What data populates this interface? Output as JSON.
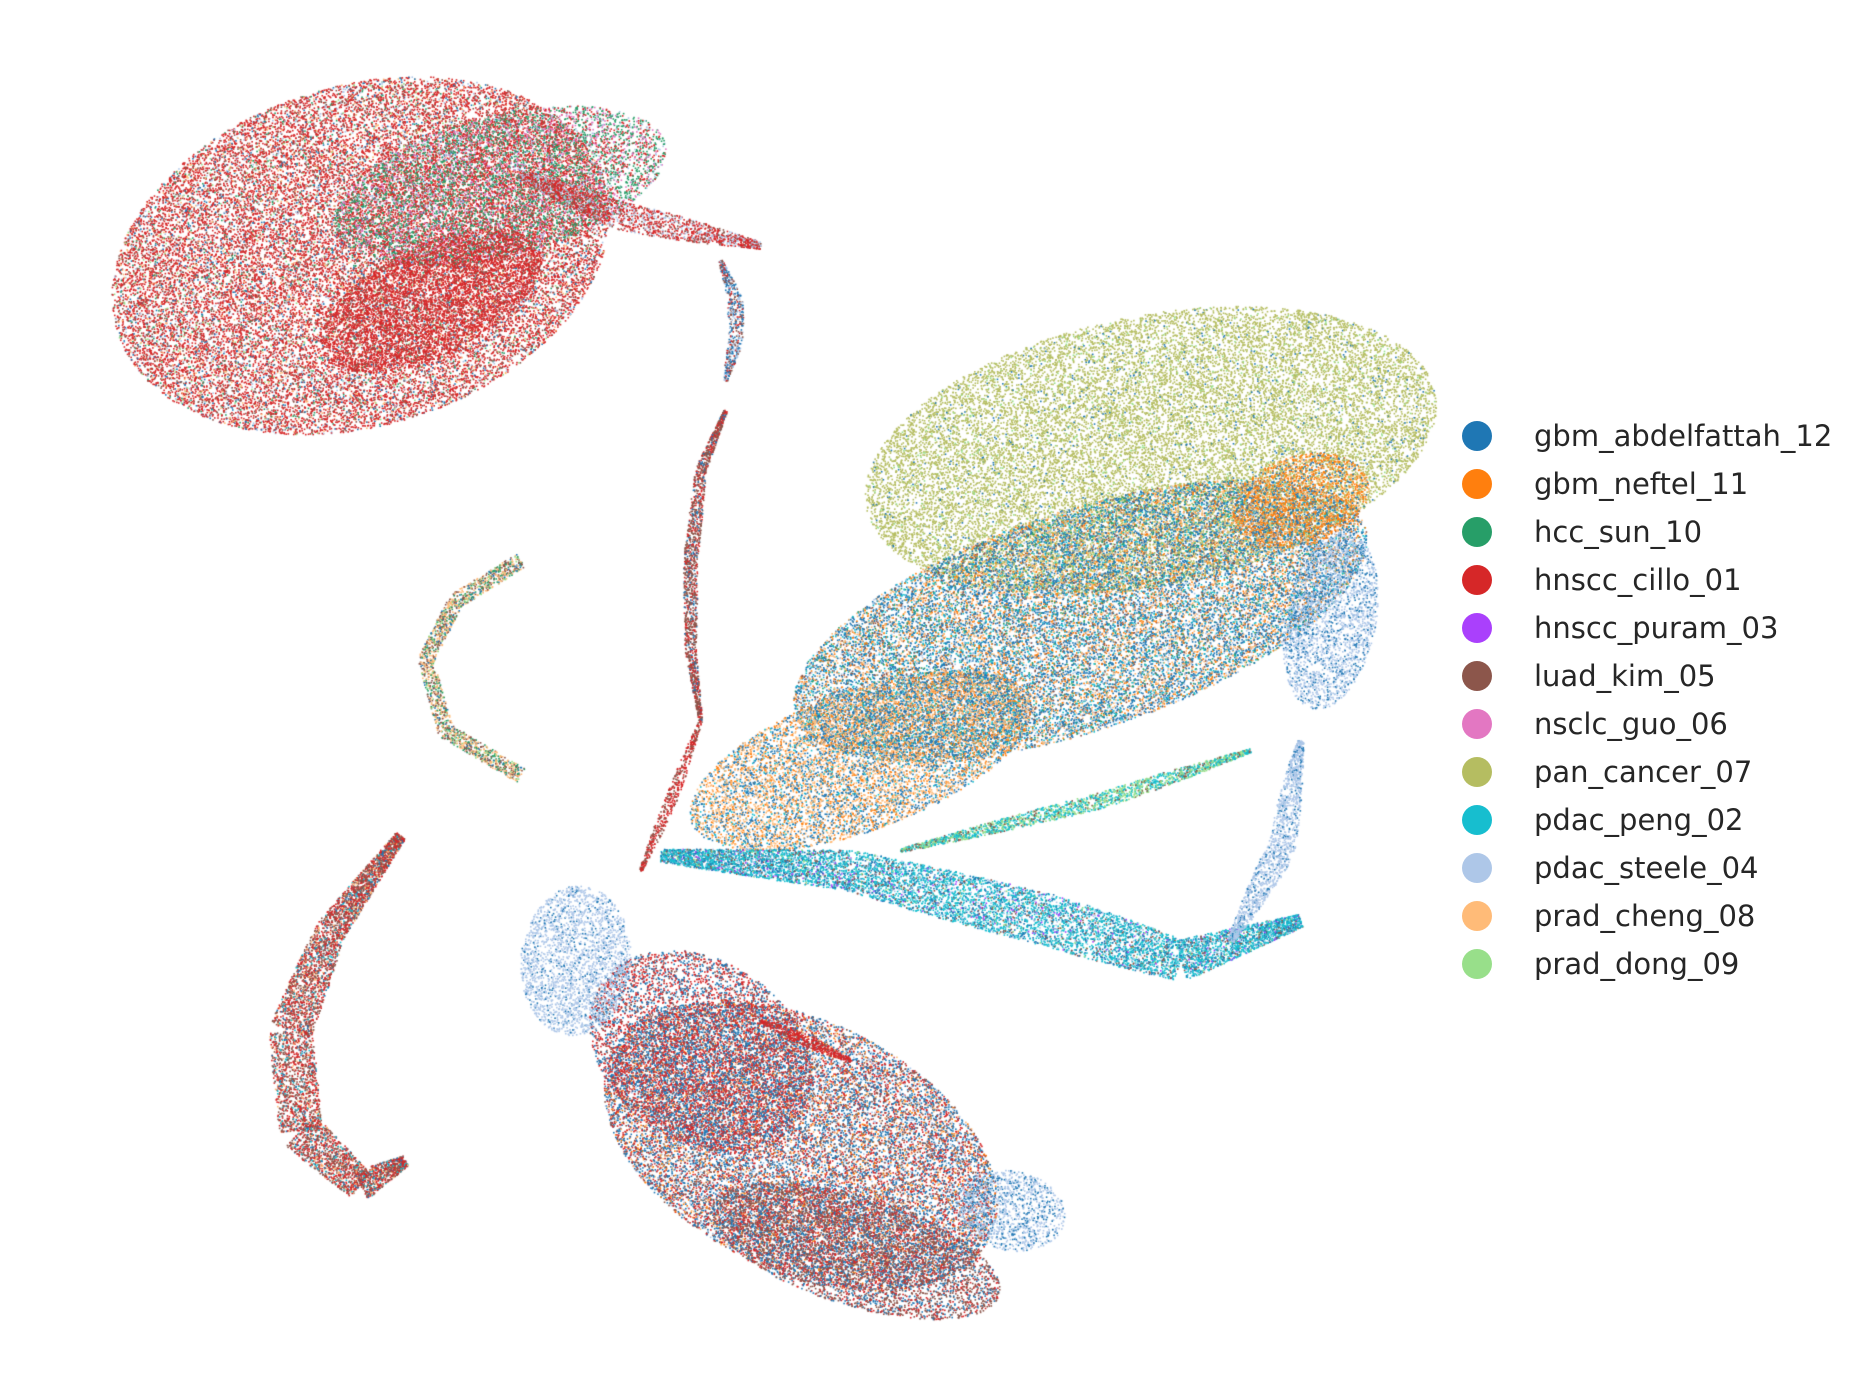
{
  "chart_data": {
    "type": "scatter",
    "title": "",
    "xlabel": "",
    "ylabel": "",
    "grid": false,
    "axes_visible": false,
    "legend_placement": "right",
    "series": [
      {
        "name": "gbm_abdelfattah_12",
        "color": "#1f77b4"
      },
      {
        "name": "gbm_neftel_11",
        "color": "#ff7f0e"
      },
      {
        "name": "hcc_sun_10",
        "color": "#279e68"
      },
      {
        "name": "hnscc_cillo_01",
        "color": "#d62728"
      },
      {
        "name": "hnscc_puram_03",
        "color": "#aa40fc"
      },
      {
        "name": "luad_kim_05",
        "color": "#8c564b"
      },
      {
        "name": "nsclc_guo_06",
        "color": "#e377c2"
      },
      {
        "name": "pan_cancer_07",
        "color": "#b5bd61"
      },
      {
        "name": "pdac_peng_02",
        "color": "#17becf"
      },
      {
        "name": "pdac_steele_04",
        "color": "#aec7e8"
      },
      {
        "name": "prad_cheng_08",
        "color": "#ffbb78"
      },
      {
        "name": "prad_dong_09",
        "color": "#98df8a"
      }
    ]
  }
}
